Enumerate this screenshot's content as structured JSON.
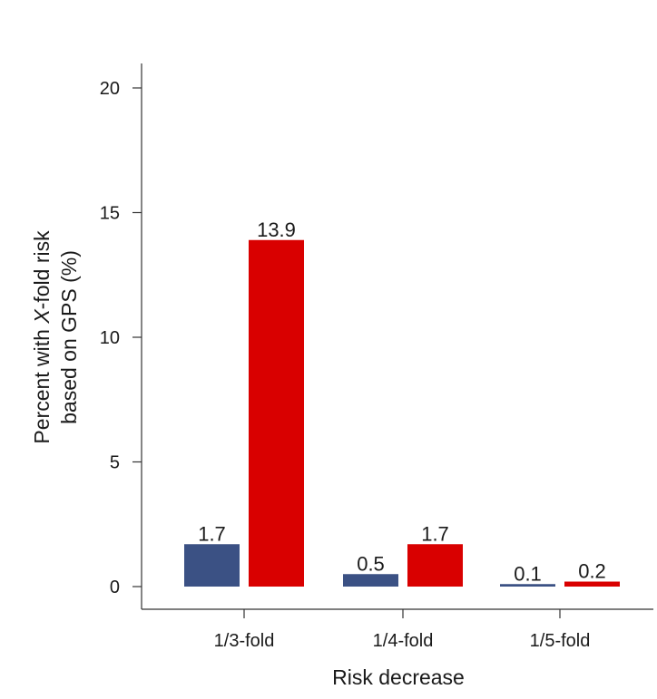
{
  "chart_data": {
    "type": "bar",
    "categories": [
      "1/3-fold",
      "1/4-fold",
      "1/5-fold"
    ],
    "series": [
      {
        "color": "#3b5184",
        "values": [
          1.7,
          0.5,
          0.1
        ],
        "labels": [
          "1.7",
          "0.5",
          "0.1"
        ]
      },
      {
        "color": "#d90000",
        "values": [
          13.9,
          1.7,
          0.2
        ],
        "labels": [
          "13.9",
          "1.7",
          "0.2"
        ]
      }
    ],
    "title": "",
    "xlabel": "Risk decrease",
    "ylabel_line1_pre": "Percent with ",
    "ylabel_line1_italic": "X",
    "ylabel_line1_post": "-fold risk",
    "ylabel_line2": "based on GPS (%)",
    "ylim": [
      0,
      20
    ],
    "yticks": [
      0,
      5,
      10,
      15,
      20
    ],
    "ytick_labels": [
      "0",
      "5",
      "10",
      "15",
      "20"
    ],
    "grid": false,
    "legend": "none"
  }
}
